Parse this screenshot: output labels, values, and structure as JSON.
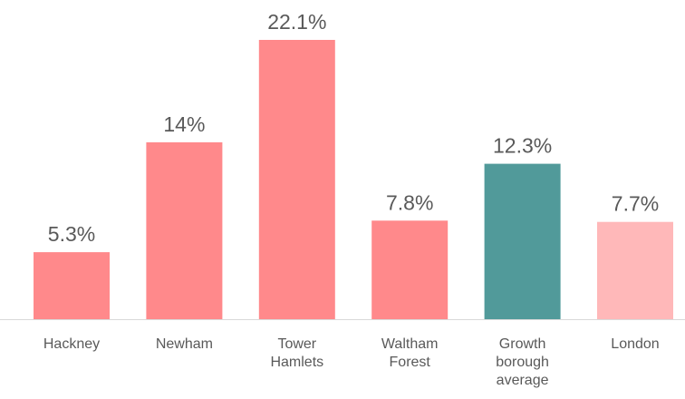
{
  "chart_data": {
    "type": "bar",
    "title": "",
    "xlabel": "",
    "ylabel": "",
    "categories": [
      [
        "Hackney"
      ],
      [
        "Newham"
      ],
      [
        "Tower",
        "Hamlets"
      ],
      [
        "Waltham",
        "Forest"
      ],
      [
        "Growth",
        "borough",
        "average"
      ],
      [
        "London"
      ]
    ],
    "values": [
      5.3,
      14,
      22.1,
      7.8,
      12.3,
      7.7
    ],
    "value_labels": [
      "5.3%",
      "14%",
      "22.1%",
      "7.8%",
      "12.3%",
      "7.7%"
    ],
    "ylim": [
      0,
      22.1
    ],
    "grid": false,
    "legend": "none",
    "colors": {
      "default": "#ff898b",
      "highlight": "#519a9a",
      "london": "#ffb8b9",
      "axis": "#d9d9d9",
      "text": "#595959"
    },
    "bar_colors": [
      "#ff898b",
      "#ff898b",
      "#ff898b",
      "#ff898b",
      "#519a9a",
      "#ffb8b9"
    ]
  }
}
